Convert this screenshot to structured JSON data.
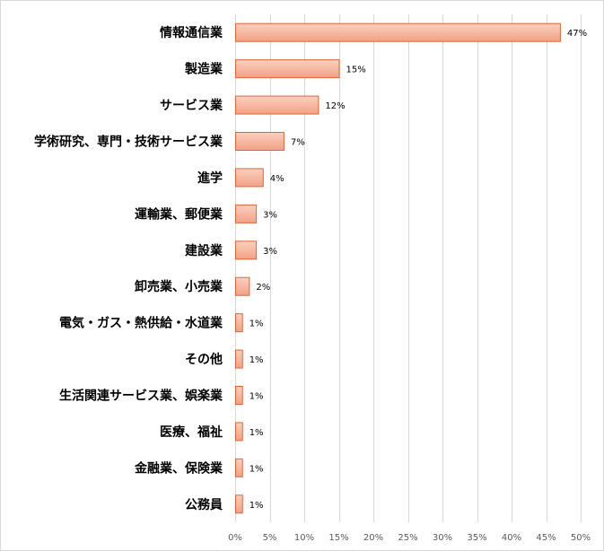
{
  "chart_data": {
    "type": "bar",
    "orientation": "horizontal",
    "categories": [
      "情報通信業",
      "製造業",
      "サービス業",
      "学術研究、専門・技術サービス業",
      "進学",
      "運輸業、郵便業",
      "建設業",
      "卸売業、小売業",
      "電気・ガス・熱供給・水道業",
      "その他",
      "生活関連サービス業、娯楽業",
      "医療、福祉",
      "金融業、保険業",
      "公務員"
    ],
    "values": [
      47,
      15,
      12,
      7,
      4,
      3,
      3,
      2,
      1,
      1,
      1,
      1,
      1,
      1
    ],
    "value_labels": [
      "47%",
      "15%",
      "12%",
      "7%",
      "4%",
      "3%",
      "3%",
      "2%",
      "1%",
      "1%",
      "1%",
      "1%",
      "1%",
      "1%"
    ],
    "xlim": [
      0,
      50
    ],
    "x_ticks": [
      "0%",
      "5%",
      "10%",
      "15%",
      "20%",
      "25%",
      "30%",
      "35%",
      "40%",
      "45%",
      "50%"
    ],
    "title": "",
    "xlabel": "",
    "ylabel": "",
    "grid": "vertical",
    "legend": "none",
    "colors": {
      "bar_fill_top": "#fbd0bf",
      "bar_fill_bottom": "#f2a185",
      "bar_stroke": "#e2653a",
      "grid": "#d9d9d9"
    }
  }
}
